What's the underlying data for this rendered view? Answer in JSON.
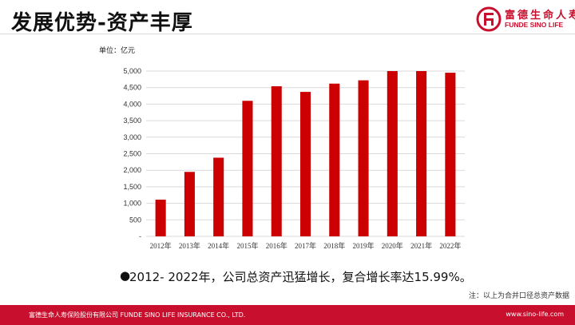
{
  "header": {
    "title": "发展优势-资产丰厚",
    "logo_cn": "富德生命人寿",
    "logo_en": "FUNDE SINO LIFE"
  },
  "unit_label": "单位：亿元",
  "note": "2012- 2022年，公司总资产迅猛增长，复合增长率达15.99%。",
  "footnote": "注：以上为合并口径总资产数据",
  "footer": {
    "company": "富德生命人寿保险股份有限公司    FUNDE SINO LIFE INSURANCE CO., LTD.",
    "url": "www.sino-life.com"
  },
  "colors": {
    "brand": "#c8102e",
    "bar": "#cc0000"
  },
  "chart_data": {
    "type": "bar",
    "categories": [
      "2012年",
      "2013年",
      "2014年",
      "2015年",
      "2016年",
      "2017年",
      "2018年",
      "2019年",
      "2020年",
      "2021年",
      "2022年"
    ],
    "values": [
      1110,
      1950,
      2380,
      4100,
      4540,
      4370,
      4620,
      4720,
      5000,
      5000,
      4950
    ],
    "ylim": [
      0,
      5000
    ],
    "yticks": [
      "-",
      "500",
      "1,000",
      "1,500",
      "2,000",
      "2,500",
      "3,000",
      "3,500",
      "4,000",
      "4,500",
      "5,000"
    ],
    "grid": true
  }
}
